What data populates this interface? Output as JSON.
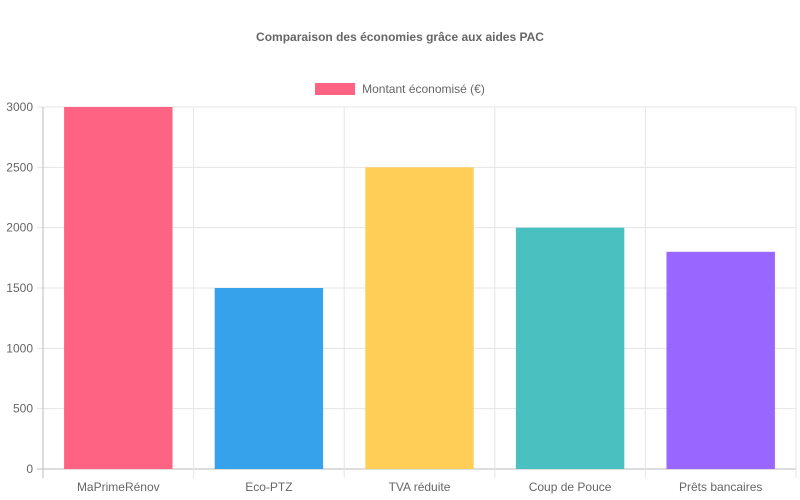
{
  "chart_data": {
    "type": "bar",
    "title": "Comparaison des économies grâce aux aides PAC",
    "xlabel": "",
    "ylabel": "",
    "ylim": [
      0,
      3000
    ],
    "yticks": [
      0,
      500,
      1000,
      1500,
      2000,
      2500,
      3000
    ],
    "grid": true,
    "legend_position": "top",
    "categories": [
      "MaPrimeRénov",
      "Eco-PTZ",
      "TVA réduite",
      "Coup de Pouce",
      "Prêts bancaires"
    ],
    "series": [
      {
        "name": "Montant économisé (€)",
        "values": [
          3000,
          1500,
          2500,
          2000,
          1800
        ],
        "colors": [
          "#ff6384",
          "#36a2eb",
          "#ffce56",
          "#4bc0c0",
          "#9966ff"
        ]
      }
    ]
  },
  "legend": {
    "label": "Montant économisé (€)",
    "color": "#ff6384"
  }
}
